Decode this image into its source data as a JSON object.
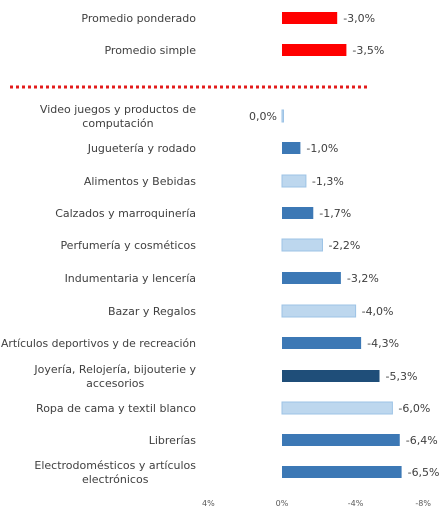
{
  "chart_data": {
    "type": "bar",
    "orientation": "horizontal",
    "x_reversed": true,
    "grid": false,
    "legend": "none",
    "categories": [
      "Promedio ponderado",
      "Promedio simple",
      "Video juegos y productos de computación",
      "Juguetería y rodado",
      "Alimentos y Bebidas",
      "Calzados y marroquinería",
      "Perfumería y cosméticos",
      "Indumentaria y lencería",
      "Bazar y Regalos",
      "Artículos deportivos y de recreación",
      "Joyería, Relojería, bijouterie y accesorios",
      "Ropa de cama y textil blanco",
      "Librerías",
      "Electrodomésticos y artículos electrónicos"
    ],
    "values": [
      -3.0,
      -3.5,
      0.0,
      -1.0,
      -1.3,
      -1.7,
      -2.2,
      -3.2,
      -4.0,
      -4.3,
      -5.3,
      -6.0,
      -6.4,
      -6.5
    ],
    "value_labels": [
      "-3,0%",
      "-3,5%",
      "0,0%",
      "-1,0%",
      "-1,3%",
      "-1,7%",
      "-2,2%",
      "-3,2%",
      "-4,0%",
      "-4,3%",
      "-5,3%",
      "-6,0%",
      "-6,4%",
      "-6,5%"
    ],
    "bar_colors": [
      "#ff0000",
      "#ff0000",
      "#bdd7ee",
      "#3c78b5",
      "#bdd7ee",
      "#3c78b5",
      "#bdd7ee",
      "#3c78b5",
      "#bdd7ee",
      "#3c78b5",
      "#1f4e79",
      "#bdd7ee",
      "#3c78b5",
      "#3c78b5"
    ],
    "xlim": [
      4,
      -8
    ],
    "ticks": [
      4,
      0,
      -4,
      -8
    ],
    "tick_labels": [
      "4%",
      "0%",
      "-4%",
      "-8%"
    ],
    "separator": {
      "after_index": 1,
      "color": "#e31b1b",
      "style": "dotted"
    }
  }
}
